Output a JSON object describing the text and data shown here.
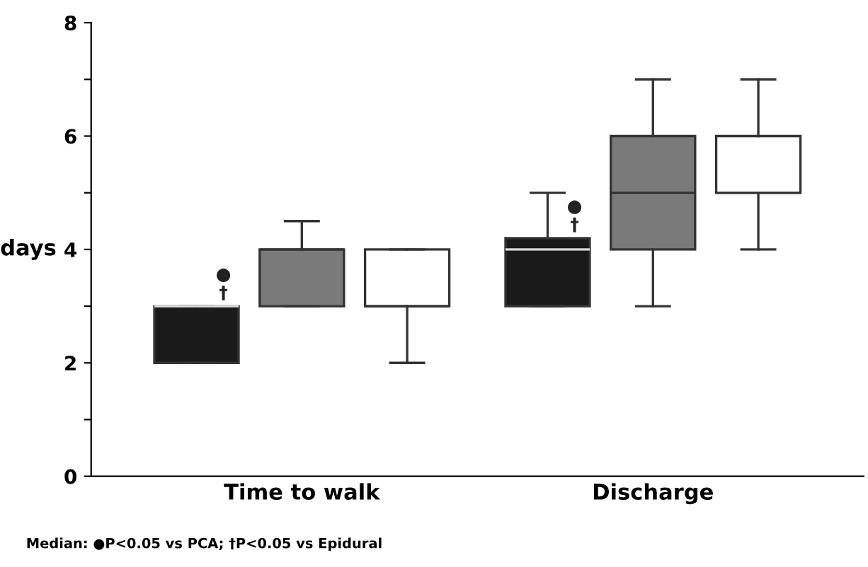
{
  "chart_data": {
    "type": "box",
    "ylabel": "days",
    "categories": [
      "Time to walk",
      "Discharge"
    ],
    "series": [
      {
        "color": "#1a1a1a",
        "boxes": [
          {
            "low": 2,
            "q1": 2,
            "median": 3,
            "q3": 3,
            "high": 3
          },
          {
            "low": 3,
            "q1": 3,
            "median": 4,
            "q3": 4.2,
            "high": 5
          }
        ]
      },
      {
        "color": "#7a7a7a",
        "boxes": [
          {
            "low": 3,
            "q1": 3,
            "median": 4,
            "q3": 4,
            "high": 4.5
          },
          {
            "low": 3,
            "q1": 4,
            "median": 5,
            "q3": 6,
            "high": 7
          }
        ]
      },
      {
        "color": "#ffffff",
        "boxes": [
          {
            "low": 2,
            "q1": 3,
            "median": 3,
            "q3": 4,
            "high": 4
          },
          {
            "low": 4,
            "q1": 5,
            "median": 5,
            "q3": 6,
            "high": 7
          }
        ]
      }
    ],
    "ylim": [
      0,
      8
    ],
    "yticks": [
      0,
      {
        "value": 1,
        "label": null
      },
      2,
      {
        "value": 3,
        "label": null
      },
      4,
      {
        "value": 5,
        "label": null
      },
      6,
      {
        "value": 7,
        "label": null
      },
      8
    ],
    "grid": false,
    "annotations": [
      "●",
      "†",
      "●",
      "†",
      "Median: ●P<0.05 vs PCA; †P<0.05 vs Epidural"
    ]
  }
}
